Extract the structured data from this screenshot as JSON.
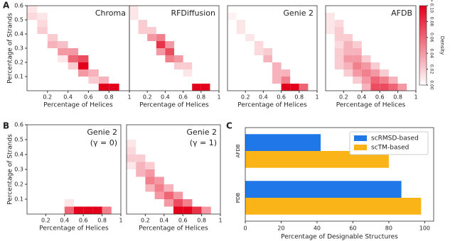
{
  "panel_labels": [
    "A",
    "B",
    "C"
  ],
  "chart_data": [
    {
      "type": "heatmap",
      "title": "Chroma",
      "xlabel": "Percentage of Helices",
      "ylabel": "Percentage of Strands",
      "xlim": [
        0,
        1
      ],
      "ylim": [
        0,
        0.6
      ],
      "xticks": [
        0.2,
        0.4,
        0.6,
        0.8,
        1
      ],
      "yticks": [
        0.1,
        0.2,
        0.3,
        0.4,
        0.5,
        0.6
      ],
      "cells": [
        [
          0,
          0.55,
          0.01
        ],
        [
          0,
          0.5,
          0.015
        ],
        [
          0.1,
          0.5,
          0.01
        ],
        [
          0.1,
          0.45,
          0.015
        ],
        [
          0.1,
          0.4,
          0.02
        ],
        [
          0.2,
          0.35,
          0.02
        ],
        [
          0.2,
          0.3,
          0.03
        ],
        [
          0.3,
          0.3,
          0.025
        ],
        [
          0.3,
          0.25,
          0.04
        ],
        [
          0.4,
          0.25,
          0.04
        ],
        [
          0.4,
          0.2,
          0.06
        ],
        [
          0.5,
          0.2,
          0.07
        ],
        [
          0.5,
          0.15,
          0.1
        ],
        [
          0.5,
          0.1,
          0.04
        ],
        [
          0.6,
          0.1,
          0.03
        ],
        [
          0.6,
          0.05,
          0.02
        ],
        [
          0.7,
          0.05,
          0.03
        ],
        [
          0.7,
          0,
          0.1
        ],
        [
          0.8,
          0,
          0.1
        ],
        [
          0.3,
          0.2,
          0.01
        ],
        [
          0.4,
          0.15,
          0.02
        ]
      ]
    },
    {
      "type": "heatmap",
      "title": "RFDiffusion",
      "xlabel": "Percentage of Helices",
      "xlim": [
        0,
        1
      ],
      "ylim": [
        0,
        0.6
      ],
      "xticks": [
        0.2,
        0.4,
        0.6,
        0.8,
        1
      ],
      "cells": [
        [
          0,
          0.55,
          0.01
        ],
        [
          0,
          0.5,
          0.01
        ],
        [
          0.1,
          0.45,
          0.02
        ],
        [
          0.1,
          0.4,
          0.02
        ],
        [
          0.2,
          0.4,
          0.02
        ],
        [
          0.2,
          0.35,
          0.04
        ],
        [
          0.3,
          0.35,
          0.05
        ],
        [
          0.3,
          0.3,
          0.08
        ],
        [
          0.3,
          0.25,
          0.04
        ],
        [
          0.4,
          0.3,
          0.04
        ],
        [
          0.4,
          0.25,
          0.07
        ],
        [
          0.4,
          0.2,
          0.05
        ],
        [
          0.5,
          0.2,
          0.04
        ],
        [
          0.5,
          0.15,
          0.02
        ],
        [
          0.6,
          0.15,
          0.02
        ],
        [
          0.6,
          0.1,
          0.01
        ],
        [
          0.7,
          0,
          0.1
        ],
        [
          0.8,
          0,
          0.1
        ]
      ]
    },
    {
      "type": "heatmap",
      "title": "Genie 2",
      "xlabel": "Percentage of Helices",
      "xlim": [
        0,
        1
      ],
      "ylim": [
        0,
        0.6
      ],
      "xticks": [
        0.2,
        0.4,
        0.6,
        0.8,
        1
      ],
      "cells": [
        [
          0,
          0.5,
          0.005
        ],
        [
          0.1,
          0.45,
          0.01
        ],
        [
          0.1,
          0.4,
          0.01
        ],
        [
          0.2,
          0.35,
          0.01
        ],
        [
          0.3,
          0.3,
          0.015
        ],
        [
          0.3,
          0.25,
          0.015
        ],
        [
          0.4,
          0.25,
          0.02
        ],
        [
          0.4,
          0.2,
          0.03
        ],
        [
          0.5,
          0.15,
          0.03
        ],
        [
          0.5,
          0.1,
          0.03
        ],
        [
          0.6,
          0.1,
          0.03
        ],
        [
          0.5,
          0.05,
          0.03
        ],
        [
          0.6,
          0.05,
          0.05
        ],
        [
          0.6,
          0,
          0.1
        ],
        [
          0.7,
          0,
          0.1
        ],
        [
          0.8,
          0,
          0.06
        ]
      ]
    },
    {
      "type": "heatmap",
      "title": "AFDB",
      "xlabel": "Percentage of Helices",
      "xlim": [
        0,
        1
      ],
      "ylim": [
        0,
        0.6
      ],
      "xticks": [
        0.2,
        0.4,
        0.6,
        0.8,
        1
      ],
      "cells": [
        [
          0,
          0.5,
          0.01
        ],
        [
          0,
          0.45,
          0.01
        ],
        [
          0.1,
          0.45,
          0.015
        ],
        [
          0,
          0.4,
          0.01
        ],
        [
          0.1,
          0.4,
          0.02
        ],
        [
          0.1,
          0.35,
          0.02
        ],
        [
          0.2,
          0.35,
          0.02
        ],
        [
          0.1,
          0.3,
          0.015
        ],
        [
          0.2,
          0.3,
          0.03
        ],
        [
          0.3,
          0.3,
          0.02
        ],
        [
          0.1,
          0.25,
          0.02
        ],
        [
          0.2,
          0.25,
          0.03
        ],
        [
          0.3,
          0.25,
          0.03
        ],
        [
          0.1,
          0.2,
          0.02
        ],
        [
          0.2,
          0.2,
          0.04
        ],
        [
          0.3,
          0.2,
          0.04
        ],
        [
          0.4,
          0.2,
          0.02
        ],
        [
          0.1,
          0.15,
          0.02
        ],
        [
          0.2,
          0.15,
          0.03
        ],
        [
          0.3,
          0.15,
          0.05
        ],
        [
          0.4,
          0.15,
          0.04
        ],
        [
          0.5,
          0.15,
          0.02
        ],
        [
          0.2,
          0.1,
          0.02
        ],
        [
          0.3,
          0.1,
          0.04
        ],
        [
          0.4,
          0.1,
          0.05
        ],
        [
          0.5,
          0.1,
          0.04
        ],
        [
          0.6,
          0.1,
          0.02
        ],
        [
          0.3,
          0.05,
          0.02
        ],
        [
          0.4,
          0.05,
          0.04
        ],
        [
          0.5,
          0.05,
          0.06
        ],
        [
          0.6,
          0.05,
          0.05
        ],
        [
          0.7,
          0.05,
          0.03
        ],
        [
          0.4,
          0,
          0.03
        ],
        [
          0.5,
          0,
          0.07
        ],
        [
          0.6,
          0,
          0.07
        ],
        [
          0.7,
          0,
          0.06
        ],
        [
          0.8,
          0,
          0.04
        ]
      ]
    },
    {
      "type": "colorbar",
      "label": "Density",
      "lim": [
        0,
        0.1
      ],
      "colors": [
        "#ffffff",
        "#e3001b"
      ],
      "ticks": [
        {
          "value": 0,
          "label": "0.00"
        },
        {
          "value": 0.02,
          "label": "0.02"
        },
        {
          "value": 0.04,
          "label": "0.04"
        },
        {
          "value": 0.06,
          "label": "0.06"
        },
        {
          "value": 0.08,
          "label": "0.08"
        },
        {
          "value": 0.1,
          "label": "> 0.10"
        }
      ]
    },
    {
      "type": "heatmap",
      "title": "Genie 2",
      "subtitle": "(γ = 0)",
      "xlabel": "Percentage of Helices",
      "ylabel": "Percentage of Strands",
      "xlim": [
        0,
        1
      ],
      "ylim": [
        0,
        0.6
      ],
      "xticks": [
        0.2,
        0.4,
        0.6,
        0.8,
        1
      ],
      "yticks": [
        0.1,
        0.2,
        0.3,
        0.4,
        0.5,
        0.6
      ],
      "cells": [
        [
          0.4,
          0,
          0.06
        ],
        [
          0.5,
          0,
          0.1
        ],
        [
          0.6,
          0,
          0.1
        ],
        [
          0.7,
          0,
          0.1
        ],
        [
          0.8,
          0,
          0.05
        ],
        [
          0.4,
          0.05,
          0.01
        ]
      ]
    },
    {
      "type": "heatmap",
      "title": "Genie 2",
      "subtitle": "(γ = 1)",
      "xlabel": "Percentage of Helices",
      "xlim": [
        0,
        1
      ],
      "ylim": [
        0,
        0.6
      ],
      "xticks": [
        0.2,
        0.4,
        0.6,
        0.8,
        1
      ],
      "cells": [
        [
          0,
          0.45,
          0.01
        ],
        [
          0,
          0.4,
          0.015
        ],
        [
          0,
          0.35,
          0.02
        ],
        [
          0.1,
          0.35,
          0.02
        ],
        [
          0.1,
          0.3,
          0.03
        ],
        [
          0,
          0.3,
          0.01
        ],
        [
          0.2,
          0.3,
          0.02
        ],
        [
          0.1,
          0.25,
          0.03
        ],
        [
          0.2,
          0.25,
          0.04
        ],
        [
          0.2,
          0.2,
          0.05
        ],
        [
          0.3,
          0.2,
          0.04
        ],
        [
          0.2,
          0.15,
          0.03
        ],
        [
          0.3,
          0.15,
          0.05
        ],
        [
          0.4,
          0.15,
          0.03
        ],
        [
          0.3,
          0.1,
          0.04
        ],
        [
          0.4,
          0.1,
          0.06
        ],
        [
          0.5,
          0.1,
          0.04
        ],
        [
          0.4,
          0.05,
          0.04
        ],
        [
          0.5,
          0.05,
          0.07
        ],
        [
          0.6,
          0.05,
          0.05
        ],
        [
          0.5,
          0,
          0.1
        ],
        [
          0.6,
          0,
          0.1
        ],
        [
          0.7,
          0,
          0.08
        ],
        [
          0.8,
          0,
          0.04
        ]
      ]
    },
    {
      "type": "hbar",
      "xlabel": "Percentage of Designable Structures",
      "categories": [
        "AFDB",
        "PDB"
      ],
      "xlim": [
        0,
        105
      ],
      "xticks": [
        0,
        20,
        40,
        60,
        80,
        100
      ],
      "legend": "upper right",
      "series": [
        {
          "name": "scRMSD-based",
          "color": "#1f77e8",
          "values": [
            42,
            87
          ]
        },
        {
          "name": "scTM-based",
          "color": "#fbb417",
          "values": [
            80,
            98
          ]
        }
      ]
    }
  ]
}
